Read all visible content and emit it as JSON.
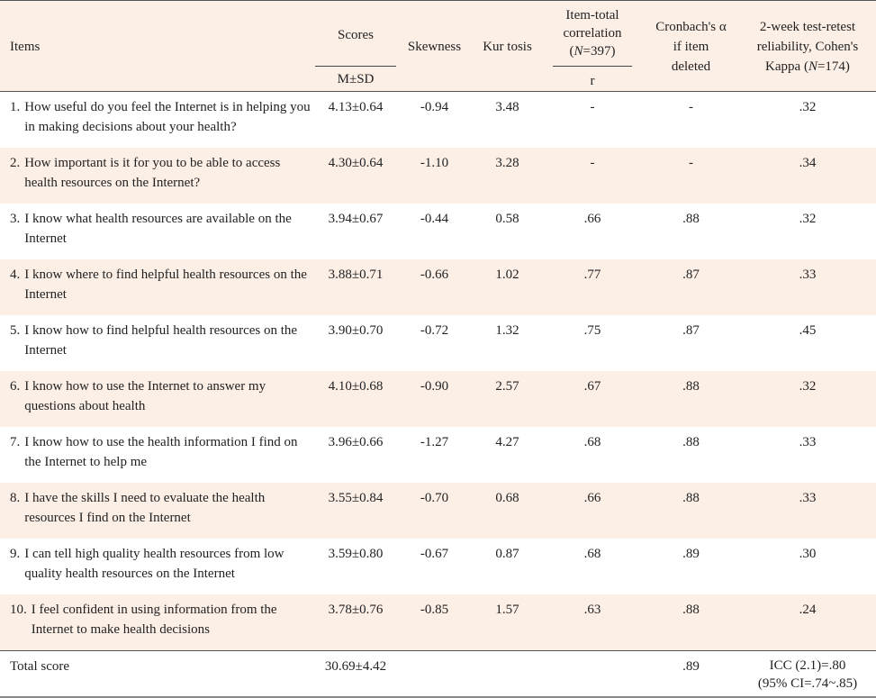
{
  "header": {
    "items": "Items",
    "scores": "Scores",
    "scores_sub": "M±SD",
    "skewness": "Skewness",
    "kurtosis": "Kur tosis",
    "item_total_line1": "Item-total",
    "item_total_line2": "correlation",
    "item_total_n_prefix": "(",
    "item_total_n_label": "N",
    "item_total_n_value": "=397)",
    "item_total_sub": "r",
    "cronbach_line1": "Cronbach's α",
    "cronbach_line2": "if item",
    "cronbach_line3": "deleted",
    "retest_line1": "2-week test-retest",
    "retest_line2": "reliability, Cohen's",
    "retest_line3_prefix": "Kappa (",
    "retest_n_label": "N",
    "retest_n_value": "=174)"
  },
  "rows": [
    {
      "num": "1.",
      "text": "How useful do you feel the Internet is in helping you in making decisions about your health?",
      "score": "4.13±0.64",
      "skew": "-0.94",
      "kurt": "3.48",
      "r": "-",
      "alpha": "-",
      "kappa": ".32"
    },
    {
      "num": "2.",
      "text": "How important is it for you to be able to access health resources on the Internet?",
      "score": "4.30±0.64",
      "skew": "-1.10",
      "kurt": "3.28",
      "r": "-",
      "alpha": "-",
      "kappa": ".34"
    },
    {
      "num": "3.",
      "text": "I know what health resources are available on the Internet",
      "score": "3.94±0.67",
      "skew": "-0.44",
      "kurt": "0.58",
      "r": ".66",
      "alpha": ".88",
      "kappa": ".32"
    },
    {
      "num": "4.",
      "text": "I know where to find helpful health resources on the Internet",
      "score": "3.88±0.71",
      "skew": "-0.66",
      "kurt": "1.02",
      "r": ".77",
      "alpha": ".87",
      "kappa": ".33"
    },
    {
      "num": "5.",
      "text": "I know how to find helpful health resources on the Internet",
      "score": "3.90±0.70",
      "skew": "-0.72",
      "kurt": "1.32",
      "r": ".75",
      "alpha": ".87",
      "kappa": ".45"
    },
    {
      "num": "6.",
      "text": "I know how to use the Internet to answer my questions about health",
      "score": "4.10±0.68",
      "skew": "-0.90",
      "kurt": "2.57",
      "r": ".67",
      "alpha": ".88",
      "kappa": ".32"
    },
    {
      "num": "7.",
      "text": "I know how to use the health information I find on the Internet to help me",
      "score": "3.96±0.66",
      "skew": "-1.27",
      "kurt": "4.27",
      "r": ".68",
      "alpha": ".88",
      "kappa": ".33"
    },
    {
      "num": "8.",
      "text": "I have the skills I need to evaluate the health resources I find on the Internet",
      "score": "3.55±0.84",
      "skew": "-0.70",
      "kurt": "0.68",
      "r": ".66",
      "alpha": ".88",
      "kappa": ".33"
    },
    {
      "num": "9.",
      "text": "I can tell high quality health resources from low quality health resources on the Internet",
      "score": "3.59±0.80",
      "skew": "-0.67",
      "kurt": "0.87",
      "r": ".68",
      "alpha": ".89",
      "kappa": ".30"
    },
    {
      "num": "10.",
      "text": "I feel confident in using information from the Internet to make health decisions",
      "score": "3.78±0.76",
      "skew": "-0.85",
      "kurt": "1.57",
      "r": ".63",
      "alpha": ".88",
      "kappa": ".24"
    }
  ],
  "total": {
    "label": "Total score",
    "score": "30.69±4.42",
    "alpha": ".89",
    "kappa_line1": "ICC (2.1)=.80",
    "kappa_line2": "(95%  CI=.74~.85)"
  },
  "colors": {
    "shade": "#fcefe6",
    "rule": "#555555"
  }
}
